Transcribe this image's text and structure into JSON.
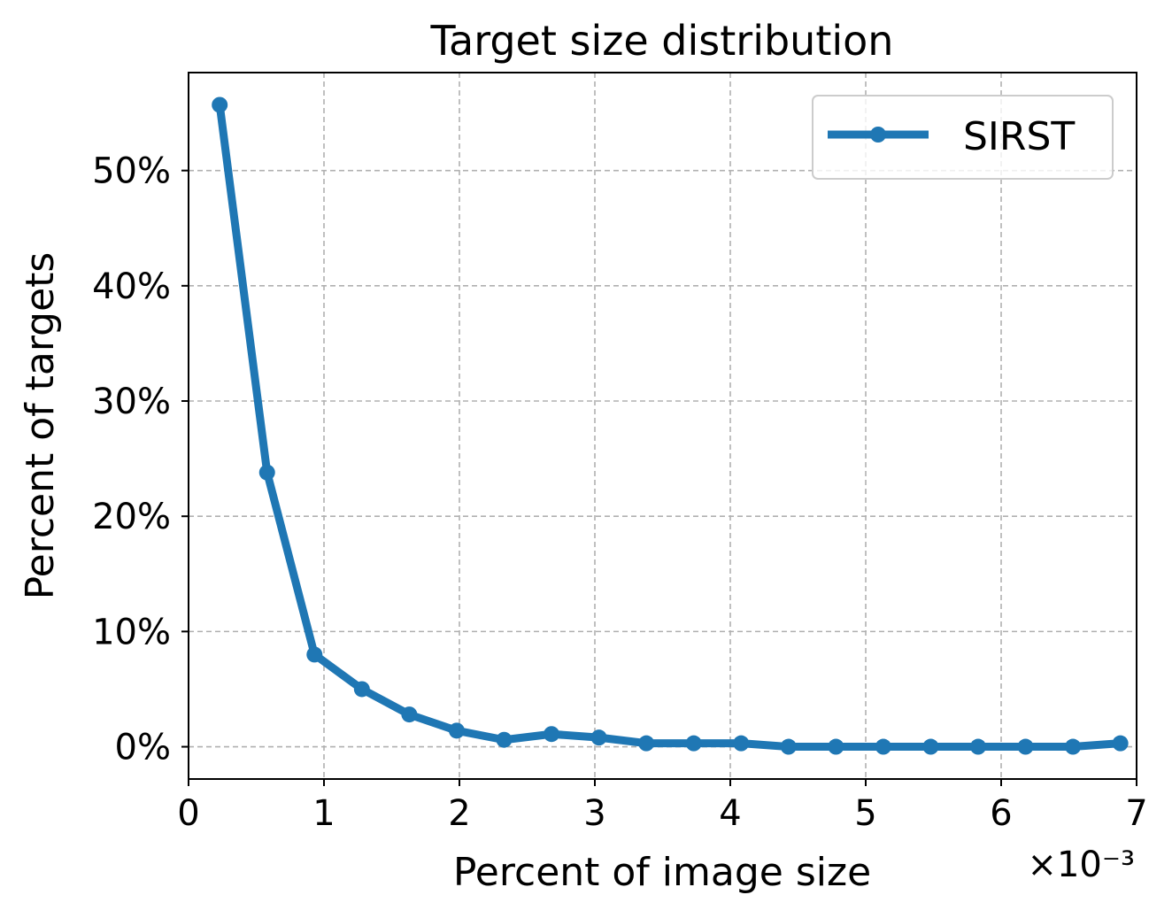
{
  "chart_data": {
    "type": "line",
    "title": "Target size distribution",
    "xlabel": "Percent of image size",
    "ylabel": "Percent of targets",
    "x_offset_label": "×10⁻³",
    "xlim": [
      0,
      7
    ],
    "ylim": [
      -2.8,
      58.5
    ],
    "grid": true,
    "legend_position": "top-right",
    "x_ticks": [
      {
        "value": 0,
        "label": "0"
      },
      {
        "value": 1,
        "label": "1"
      },
      {
        "value": 2,
        "label": "2"
      },
      {
        "value": 3,
        "label": "3"
      },
      {
        "value": 4,
        "label": "4"
      },
      {
        "value": 5,
        "label": "5"
      },
      {
        "value": 6,
        "label": "6"
      },
      {
        "value": 7,
        "label": "7"
      }
    ],
    "y_ticks": [
      {
        "value": 0,
        "label": "0%"
      },
      {
        "value": 10,
        "label": "10%"
      },
      {
        "value": 20,
        "label": "20%"
      },
      {
        "value": 30,
        "label": "30%"
      },
      {
        "value": 40,
        "label": "40%"
      },
      {
        "value": 50,
        "label": "50%"
      }
    ],
    "series": [
      {
        "name": "SIRST",
        "color": "#1f77b4",
        "x": [
          0.23,
          0.58,
          0.93,
          1.28,
          1.63,
          1.98,
          2.33,
          2.68,
          3.03,
          3.38,
          3.73,
          4.08,
          4.43,
          4.78,
          5.13,
          5.48,
          5.83,
          6.18,
          6.53,
          6.88
        ],
        "values": [
          55.7,
          23.8,
          8.0,
          5.0,
          2.8,
          1.4,
          0.6,
          1.1,
          0.8,
          0.3,
          0.3,
          0.3,
          0.0,
          0.0,
          0.0,
          0.0,
          0.0,
          0.0,
          0.0,
          0.3
        ]
      }
    ]
  }
}
